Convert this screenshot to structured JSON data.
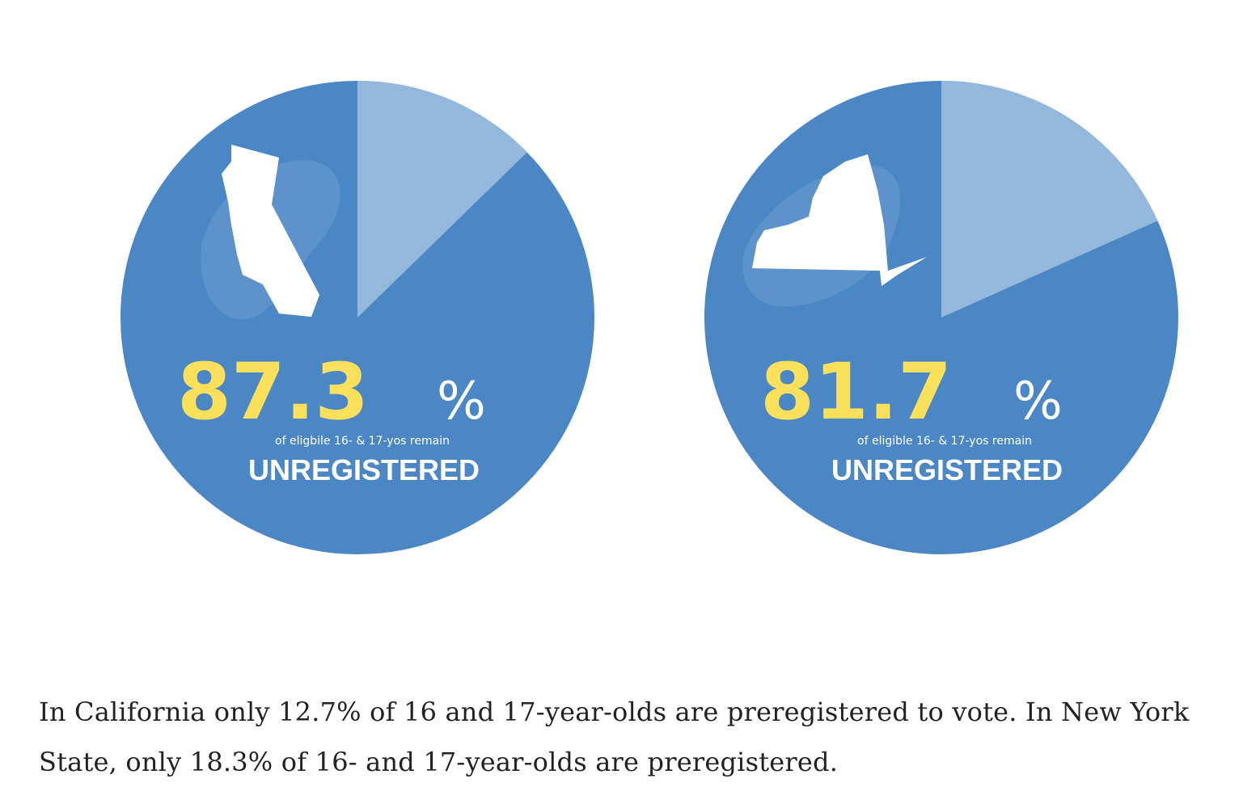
{
  "chart_data": [
    {
      "type": "pie",
      "state_icon": "california-shape-icon",
      "slices": [
        {
          "label": "unregistered",
          "value": 87.3
        },
        {
          "label": "preregistered",
          "value": 12.7
        }
      ],
      "headline_value": "87.3",
      "headline_unit": "%",
      "subtext": "of eligbile 16- & 17-yos remain",
      "status": "UNREGISTERED"
    },
    {
      "type": "pie",
      "state_icon": "new-york-shape-icon",
      "slices": [
        {
          "label": "unregistered",
          "value": 81.7
        },
        {
          "label": "preregistered",
          "value": 18.3
        }
      ],
      "headline_value": "81.7",
      "headline_unit": "%",
      "subtext": "of eligible 16- & 17-yos remain",
      "status": "UNREGISTERED"
    }
  ],
  "colors": {
    "main": "#4a87c4",
    "minor": "#93b8dc",
    "highlight": "#fbe15b",
    "text_light": "#ffffff",
    "blob": "#6d9dd0"
  },
  "caption": "In California only 12.7% of 16 and 17-year-olds are preregistered to vote. In New York State, only 18.3% of 16- and 17-year-olds are preregistered."
}
